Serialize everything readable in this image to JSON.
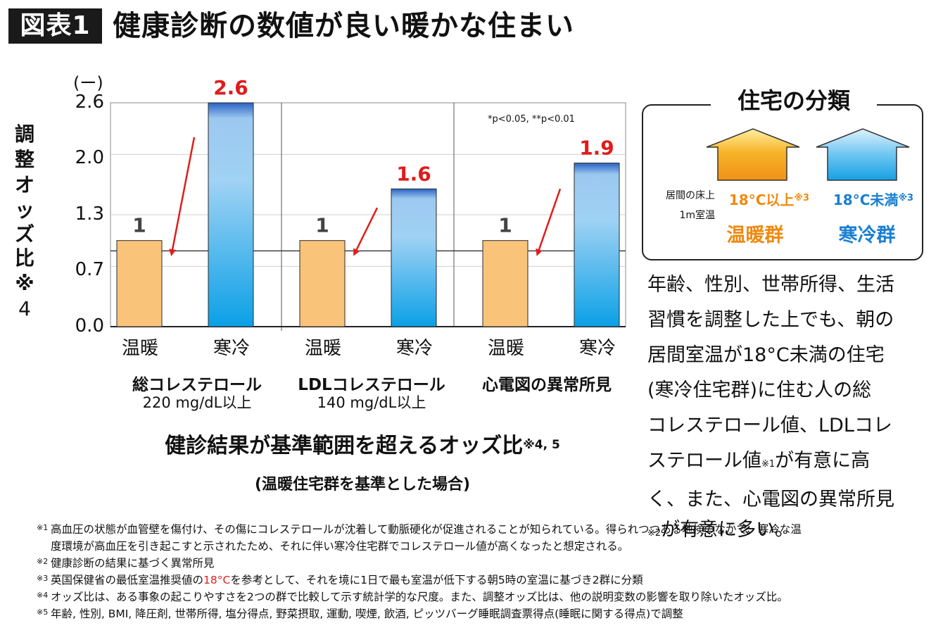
{
  "figure_label": "図表1",
  "title": "健康診断の数値が良い暖かな住まい",
  "chart_data": {
    "type": "bar",
    "unit": "(ー)",
    "ylabel": "調整オッズ比※4",
    "yticks": [
      "2.6",
      "2.0",
      "1.3",
      "0.7",
      "0.0"
    ],
    "ytick_values": [
      2.6,
      2.0,
      1.3,
      0.7,
      0.0
    ],
    "ylim": [
      0,
      2.6
    ],
    "reference_line": 0.88,
    "significance_note": "*p<0.05, **p<0.01",
    "groups": [
      {
        "name": "総コレステロール",
        "sub": "220 mg/dL以上",
        "bars": [
          {
            "category": "温暖",
            "value": 1,
            "label": "1",
            "color": "orange"
          },
          {
            "category": "寒冷",
            "value": 2.6,
            "label": "2.6",
            "color": "blue"
          }
        ]
      },
      {
        "name": "LDLコレステロール",
        "sub": "140 mg/dL以上",
        "bars": [
          {
            "category": "温暖",
            "value": 1,
            "label": "1",
            "color": "orange"
          },
          {
            "category": "寒冷",
            "value": 1.6,
            "label": "1.6",
            "color": "blue"
          }
        ]
      },
      {
        "name": "心電図の異常所見",
        "sub": "",
        "bars": [
          {
            "category": "温暖",
            "value": 1,
            "label": "1",
            "color": "orange"
          },
          {
            "category": "寒冷",
            "value": 1.9,
            "label": "1.9",
            "color": "blue"
          }
        ]
      }
    ],
    "caption": "健診結果が基準範囲を超えるオッズ比",
    "caption_note": "※4, 5",
    "subcaption": "(温暖住宅群を基準とした場合)"
  },
  "classification": {
    "title": "住宅の分類",
    "floor_label_1": "居間の床上",
    "floor_label_2": "1m室温",
    "warm_temp": "18°C以上",
    "warm_mark": "※3",
    "cold_temp": "18°C未満",
    "cold_mark": "※3",
    "warm_group": "温暖群",
    "cold_group": "寒冷群"
  },
  "description": {
    "l1": "年齢、性別、世帯所得、生活",
    "l2": "習慣を調整した上でも、朝の",
    "l3": "居間室温が18°C未満の住宅",
    "l4": "(寒冷住宅群)に住む人の総",
    "l5": "コレステロール値、LDLコレ",
    "l6a": "ステロール値",
    "l6m": "※1",
    "l6b": "が有意に高",
    "l7": "く、また、心電図の異常所見",
    "l8m": "※2",
    "l8b": "が有意に多い。"
  },
  "footnotes": {
    "n1m": "※1",
    "n1a": "高血圧の状態が血管壁を傷付け、その傷にコレステロールが沈着して動脈硬化が促進されることが知られている。得られつつある地検のなかで、寒冷な温",
    "n1b": "度環境が高血圧を引き起こすと示されたため、それに伴い寒冷住宅群でコレステロール値が高くなったと想定される。",
    "n2m": "※2",
    "n2": "健康診断の結果に基づく異常所見",
    "n3m": "※3",
    "n3a": "英国保健省の最低室温推奨値の",
    "n3r": "18°C",
    "n3b": "を参考として、それを境に1日で最も室温が低下する朝5時の室温に基づき2群に分類",
    "n4m": "※4",
    "n4": "オッズ比は、ある事象の起こりやすさを2つの群で比較して示す統計学的な尺度。また、調整オッズ比は、他の説明変数の影響を取り除いたオッズ比。",
    "n5m": "※5",
    "n5": "年齢, 性別, BMI, 降圧剤, 世帯所得, 塩分得点, 野菜摂取, 運動, 喫煙, 飲酒, ピッツバーグ睡眠調査票得点(睡眠に関する得点)で調整"
  }
}
